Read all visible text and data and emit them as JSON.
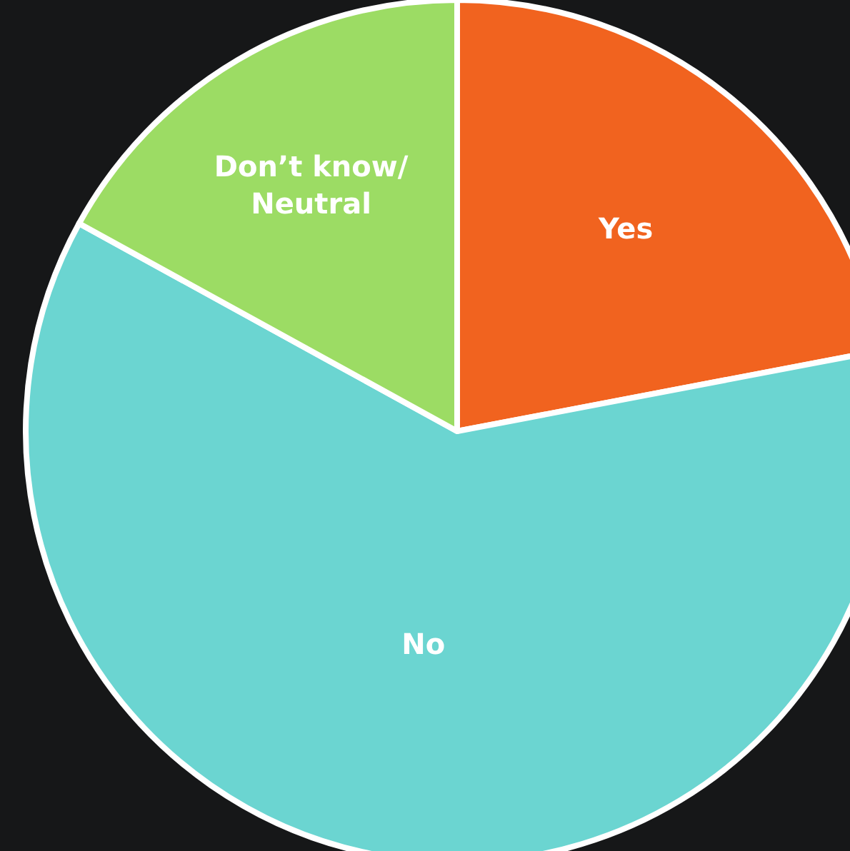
{
  "chart_data": {
    "type": "pie",
    "categories": [
      "Yes",
      "No",
      "Don’t know/\nNeutral"
    ],
    "values": [
      22,
      61,
      17
    ],
    "colors": [
      "#f1631f",
      "#6bd5d1",
      "#9cdc64"
    ]
  }
}
